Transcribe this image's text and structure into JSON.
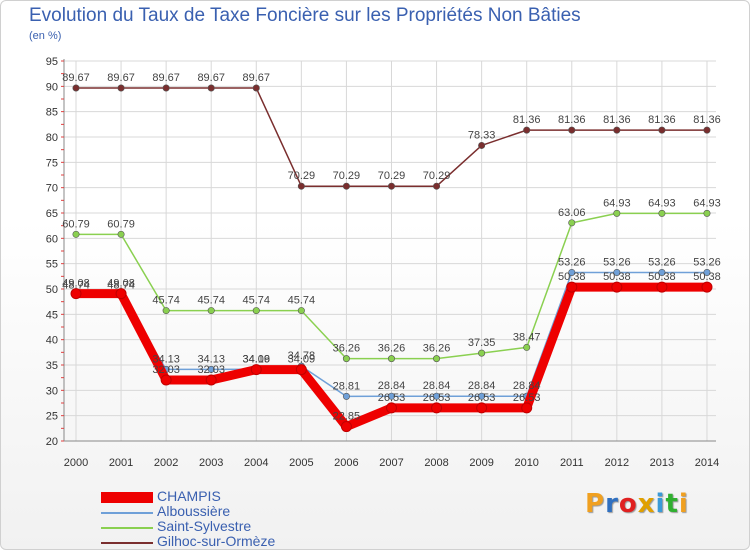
{
  "colors": {
    "title": "#3a60b0",
    "grid": "#d8d8d8",
    "label": "#444444",
    "logo": [
      "#f0a020",
      "#3070c0",
      "#e02020",
      "#e0a000",
      "#3a9ad8",
      "#30b030"
    ]
  },
  "chart_data": {
    "type": "line",
    "title": "Evolution du Taux de Taxe Foncière sur les Propriétés Non Bâties",
    "unit_label": "(en %)",
    "xlabel": "",
    "ylabel": "",
    "ylim": [
      20,
      95
    ],
    "yticks": [
      20,
      25,
      30,
      35,
      40,
      45,
      50,
      55,
      60,
      65,
      70,
      75,
      80,
      85,
      90,
      95
    ],
    "categories": [
      "2000",
      "2001",
      "2002",
      "2003",
      "2004",
      "2005",
      "2006",
      "2007",
      "2008",
      "2009",
      "2010",
      "2011",
      "2012",
      "2013",
      "2014"
    ],
    "grid": true,
    "legend_position": "bottom-left",
    "series": [
      {
        "name": "CHAMPIS",
        "color": "#ee0000",
        "style": "thick",
        "values": [
          49.08,
          49.08,
          32.03,
          32.03,
          34.09,
          34.09,
          22.85,
          26.53,
          26.53,
          26.53,
          26.53,
          50.38,
          50.38,
          50.38,
          50.38
        ],
        "labels": [
          "49.08",
          "49.08",
          "32.03",
          "32.03",
          "34.09",
          "34.09",
          "22.85",
          "26.53",
          "26.53",
          "26.53",
          "26.53",
          "50.38",
          "50.38",
          "50.38",
          "50.38"
        ]
      },
      {
        "name": "Alboussière",
        "color": "#6fa0d8",
        "style": "thin",
        "values": [
          48.74,
          48.74,
          34.13,
          34.13,
          34.16,
          34.78,
          28.81,
          28.84,
          28.84,
          28.84,
          28.84,
          53.26,
          53.26,
          53.26,
          53.26
        ],
        "labels": [
          "48.74",
          "48.74",
          "34.13",
          "34.13",
          "34.16",
          "34.78",
          "28.81",
          "28.84",
          "28.84",
          "28.84",
          "28.84",
          "53.26",
          "53.26",
          "53.26",
          "53.26"
        ]
      },
      {
        "name": "Saint-Sylvestre",
        "color": "#8ad050",
        "style": "thin",
        "values": [
          60.79,
          60.79,
          45.74,
          45.74,
          45.74,
          45.74,
          36.26,
          36.26,
          36.26,
          37.35,
          38.47,
          63.06,
          64.93,
          64.93,
          64.93
        ],
        "labels": [
          "60.79",
          "60.79",
          "45.74",
          "45.74",
          "45.74",
          "45.74",
          "36.26",
          "36.26",
          "36.26",
          "37.35",
          "38.47",
          "63.06",
          "64.93",
          "64.93",
          "64.93"
        ]
      },
      {
        "name": "Gilhoc-sur-Ormèze",
        "color": "#7a2e2e",
        "style": "thin",
        "values": [
          89.67,
          89.67,
          89.67,
          89.67,
          89.67,
          70.29,
          70.29,
          70.29,
          70.29,
          78.33,
          81.36,
          81.36,
          81.36,
          81.36,
          81.36
        ],
        "labels": [
          "89.67",
          "89.67",
          "89.67",
          "89.67",
          "89.67",
          "70.29",
          "70.29",
          "70.29",
          "70.29",
          "78.33",
          "81.36",
          "81.36",
          "81.36",
          "81.36",
          "81.36"
        ]
      }
    ]
  },
  "legend": {
    "items": [
      {
        "label": "CHAMPIS"
      },
      {
        "label": "Alboussière"
      },
      {
        "label": "Saint-Sylvestre"
      },
      {
        "label": "Gilhoc-sur-Ormèze"
      }
    ]
  },
  "logo": {
    "alt": "Proxiti",
    "letters": [
      "P",
      "r",
      "o",
      "x",
      "i",
      "t",
      "i"
    ]
  }
}
